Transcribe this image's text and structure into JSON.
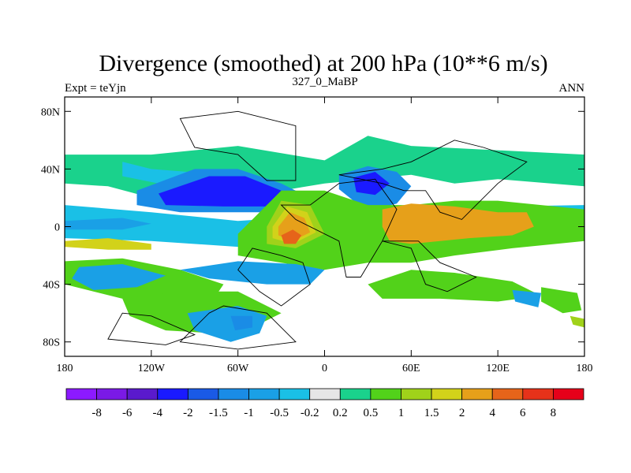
{
  "chart_data": {
    "type": "heatmap",
    "title": "Divergence (smoothed) at 200 hPa (10**6 m/s)",
    "subtitle_left": "Expt = teYjn",
    "subtitle_center": "327_0_MaBP",
    "subtitle_right": "ANN",
    "xlim": [
      -180,
      180
    ],
    "ylim": [
      -90,
      90
    ],
    "x_ticks": [
      {
        "value": -180,
        "label": "180"
      },
      {
        "value": -120,
        "label": "120W"
      },
      {
        "value": -60,
        "label": "60W"
      },
      {
        "value": 0,
        "label": "0"
      },
      {
        "value": 60,
        "label": "60E"
      },
      {
        "value": 120,
        "label": "120E"
      },
      {
        "value": 180,
        "label": "180"
      }
    ],
    "y_ticks": [
      {
        "value": 80,
        "label": "80N"
      },
      {
        "value": 40,
        "label": "40N"
      },
      {
        "value": 0,
        "label": "0"
      },
      {
        "value": -40,
        "label": "40S"
      },
      {
        "value": -80,
        "label": "80S"
      }
    ],
    "colorbar": {
      "labels": [
        "-8",
        "-6",
        "-4",
        "-2",
        "-1.5",
        "-1",
        "-0.5",
        "-0.2",
        "0.2",
        "0.5",
        "1",
        "1.5",
        "2",
        "4",
        "6",
        "8"
      ],
      "colors": [
        "#8c1aff",
        "#7a1ae6",
        "#5a1acd",
        "#1a1aff",
        "#1a5ae6",
        "#1a8ce6",
        "#1aa0e6",
        "#1ac0e6",
        "#e6e6e6",
        "#1ad28c",
        "#52d21a",
        "#a0d21a",
        "#d2d21a",
        "#e6a01a",
        "#e6641a",
        "#e6321a",
        "#e6001a"
      ]
    },
    "regions": [
      {
        "level": "0.2",
        "points": [
          [
            -180,
            50
          ],
          [
            -120,
            50
          ],
          [
            -60,
            56
          ],
          [
            0,
            46
          ],
          [
            30,
            63
          ],
          [
            60,
            56
          ],
          [
            120,
            53
          ],
          [
            180,
            50
          ],
          [
            180,
            28
          ],
          [
            120,
            33
          ],
          [
            90,
            30
          ],
          [
            60,
            36
          ],
          [
            30,
            33
          ],
          [
            0,
            30
          ],
          [
            -60,
            20
          ],
          [
            -120,
            20
          ],
          [
            -150,
            28
          ],
          [
            -180,
            30
          ]
        ]
      },
      {
        "level": "-0.2",
        "points": [
          [
            -140,
            45
          ],
          [
            -120,
            40
          ],
          [
            -95,
            38
          ],
          [
            -95,
            30
          ],
          [
            -115,
            30
          ],
          [
            -140,
            35
          ]
        ]
      },
      {
        "level": "-0.2",
        "points": [
          [
            -180,
            15
          ],
          [
            -120,
            10
          ],
          [
            -60,
            4
          ],
          [
            0,
            8
          ],
          [
            60,
            12
          ],
          [
            120,
            14
          ],
          [
            180,
            15
          ],
          [
            180,
            -8
          ],
          [
            120,
            -8
          ],
          [
            60,
            -12
          ],
          [
            0,
            -18
          ],
          [
            -60,
            -14
          ],
          [
            -120,
            -10
          ],
          [
            -180,
            -8
          ]
        ]
      },
      {
        "level": "-1",
        "points": [
          [
            -130,
            25
          ],
          [
            -90,
            40
          ],
          [
            -60,
            40
          ],
          [
            -30,
            30
          ],
          [
            -10,
            20
          ],
          [
            -30,
            10
          ],
          [
            -60,
            10
          ],
          [
            -100,
            10
          ],
          [
            -130,
            15
          ]
        ]
      },
      {
        "level": "-2",
        "points": [
          [
            -115,
            23
          ],
          [
            -80,
            35
          ],
          [
            -55,
            35
          ],
          [
            -30,
            25
          ],
          [
            -40,
            14
          ],
          [
            -70,
            14
          ],
          [
            -110,
            15
          ]
        ]
      },
      {
        "level": "-1",
        "points": [
          [
            10,
            36
          ],
          [
            30,
            42
          ],
          [
            50,
            38
          ],
          [
            60,
            28
          ],
          [
            50,
            16
          ],
          [
            35,
            12
          ],
          [
            20,
            18
          ],
          [
            10,
            26
          ]
        ]
      },
      {
        "level": "-2",
        "points": [
          [
            20,
            34
          ],
          [
            35,
            38
          ],
          [
            45,
            30
          ],
          [
            35,
            22
          ],
          [
            22,
            24
          ]
        ]
      },
      {
        "level": "-1",
        "points": [
          [
            95,
            10
          ],
          [
            120,
            12
          ],
          [
            150,
            10
          ],
          [
            175,
            5
          ],
          [
            170,
            -6
          ],
          [
            140,
            -6
          ],
          [
            110,
            -5
          ],
          [
            95,
            0
          ]
        ]
      },
      {
        "level": "-2",
        "points": [
          [
            115,
            6
          ],
          [
            140,
            7
          ],
          [
            165,
            4
          ],
          [
            160,
            -3
          ],
          [
            135,
            -4
          ],
          [
            115,
            -2
          ]
        ]
      },
      {
        "level": "-0.5",
        "points": [
          [
            -180,
            4
          ],
          [
            -140,
            6
          ],
          [
            -120,
            2
          ],
          [
            -140,
            -2
          ],
          [
            -180,
            -2
          ]
        ]
      },
      {
        "level": "0.5",
        "points": [
          [
            -60,
            -5
          ],
          [
            -30,
            25
          ],
          [
            0,
            25
          ],
          [
            30,
            15
          ],
          [
            60,
            15
          ],
          [
            90,
            18
          ],
          [
            120,
            18
          ],
          [
            150,
            15
          ],
          [
            180,
            12
          ],
          [
            180,
            -10
          ],
          [
            130,
            -15
          ],
          [
            90,
            -20
          ],
          [
            60,
            -25
          ],
          [
            30,
            -25
          ],
          [
            0,
            -30
          ],
          [
            -30,
            -25
          ],
          [
            -60,
            -20
          ]
        ]
      },
      {
        "level": "1",
        "points": [
          [
            -40,
            0
          ],
          [
            -30,
            18
          ],
          [
            -10,
            15
          ],
          [
            0,
            -5
          ],
          [
            -20,
            -15
          ],
          [
            -40,
            -12
          ]
        ]
      },
      {
        "level": "1.5",
        "points": [
          [
            -36,
            0
          ],
          [
            -26,
            14
          ],
          [
            -12,
            10
          ],
          [
            -6,
            -4
          ],
          [
            -22,
            -12
          ],
          [
            -36,
            -8
          ]
        ]
      },
      {
        "level": "2",
        "points": [
          [
            -32,
            0
          ],
          [
            -24,
            10
          ],
          [
            -14,
            6
          ],
          [
            -10,
            -4
          ],
          [
            -22,
            -10
          ],
          [
            -32,
            -6
          ]
        ]
      },
      {
        "level": "4",
        "points": [
          [
            -30,
            -6
          ],
          [
            -22,
            -2
          ],
          [
            -16,
            -6
          ],
          [
            -20,
            -12
          ],
          [
            -28,
            -12
          ]
        ]
      },
      {
        "level": "2",
        "points": [
          [
            40,
            12
          ],
          [
            60,
            16
          ],
          [
            90,
            14
          ],
          [
            120,
            10
          ],
          [
            140,
            10
          ],
          [
            145,
            0
          ],
          [
            130,
            -6
          ],
          [
            100,
            -8
          ],
          [
            80,
            -10
          ],
          [
            60,
            -12
          ],
          [
            45,
            -10
          ],
          [
            40,
            0
          ]
        ]
      },
      {
        "level": "1.5",
        "points": [
          [
            -180,
            -10
          ],
          [
            -150,
            -8
          ],
          [
            -120,
            -12
          ],
          [
            -120,
            -16
          ],
          [
            -150,
            -16
          ],
          [
            -180,
            -14
          ]
        ]
      },
      {
        "level": "0.5",
        "points": [
          [
            -180,
            -24
          ],
          [
            -140,
            -22
          ],
          [
            -100,
            -30
          ],
          [
            -70,
            -40
          ],
          [
            -80,
            -55
          ],
          [
            -140,
            -50
          ],
          [
            -180,
            -40
          ]
        ]
      },
      {
        "level": "-0.5",
        "points": [
          [
            -170,
            -28
          ],
          [
            -140,
            -26
          ],
          [
            -110,
            -34
          ],
          [
            -130,
            -42
          ],
          [
            -160,
            -44
          ],
          [
            -175,
            -36
          ]
        ]
      },
      {
        "level": "-0.5",
        "points": [
          [
            -100,
            -30
          ],
          [
            -60,
            -24
          ],
          [
            -20,
            -26
          ],
          [
            0,
            -30
          ],
          [
            -10,
            -40
          ],
          [
            -40,
            -40
          ],
          [
            -80,
            -36
          ]
        ]
      },
      {
        "level": "0.5",
        "points": [
          [
            30,
            -40
          ],
          [
            60,
            -30
          ],
          [
            90,
            -32
          ],
          [
            130,
            -38
          ],
          [
            150,
            -48
          ],
          [
            120,
            -52
          ],
          [
            80,
            -50
          ],
          [
            40,
            -50
          ]
        ]
      },
      {
        "level": "0.5",
        "points": [
          [
            -140,
            -50
          ],
          [
            -100,
            -45
          ],
          [
            -60,
            -45
          ],
          [
            -30,
            -60
          ],
          [
            -60,
            -75
          ],
          [
            -110,
            -72
          ],
          [
            -135,
            -62
          ]
        ]
      },
      {
        "level": "-0.5",
        "points": [
          [
            -95,
            -60
          ],
          [
            -60,
            -55
          ],
          [
            -40,
            -62
          ],
          [
            -45,
            -74
          ],
          [
            -65,
            -80
          ],
          [
            -90,
            -72
          ]
        ]
      },
      {
        "level": "-1",
        "points": [
          [
            -65,
            -62
          ],
          [
            -50,
            -62
          ],
          [
            -50,
            -70
          ],
          [
            -62,
            -72
          ]
        ]
      },
      {
        "level": "0.5",
        "points": [
          [
            150,
            -42
          ],
          [
            175,
            -46
          ],
          [
            178,
            -58
          ],
          [
            165,
            -60
          ],
          [
            150,
            -52
          ]
        ]
      },
      {
        "level": "-0.5",
        "points": [
          [
            130,
            -44
          ],
          [
            150,
            -46
          ],
          [
            148,
            -56
          ],
          [
            132,
            -52
          ]
        ]
      },
      {
        "level": "1",
        "points": [
          [
            170,
            -62
          ],
          [
            180,
            -64
          ],
          [
            180,
            -70
          ],
          [
            172,
            -68
          ]
        ]
      }
    ],
    "land_outlines": [
      [
        [
          -20,
          32
        ],
        [
          -40,
          32
        ],
        [
          -60,
          50
        ],
        [
          -90,
          55
        ],
        [
          -100,
          75
        ],
        [
          -60,
          80
        ],
        [
          -20,
          70
        ]
      ],
      [
        [
          -30,
          15
        ],
        [
          -10,
          15
        ],
        [
          10,
          30
        ],
        [
          35,
          33
        ],
        [
          50,
          12
        ],
        [
          40,
          -10
        ],
        [
          25,
          -35
        ],
        [
          15,
          -35
        ],
        [
          10,
          -10
        ],
        [
          -20,
          5
        ]
      ],
      [
        [
          10,
          36
        ],
        [
          40,
          40
        ],
        [
          60,
          45
        ],
        [
          90,
          60
        ],
        [
          110,
          55
        ],
        [
          140,
          45
        ],
        [
          120,
          30
        ],
        [
          105,
          15
        ],
        [
          95,
          5
        ],
        [
          80,
          10
        ],
        [
          70,
          25
        ],
        [
          55,
          25
        ],
        [
          40,
          30
        ]
      ],
      [
        [
          -30,
          -20
        ],
        [
          -15,
          -25
        ],
        [
          -10,
          -40
        ],
        [
          -30,
          -55
        ],
        [
          -45,
          -45
        ],
        [
          -60,
          -30
        ],
        [
          -50,
          -15
        ]
      ],
      [
        [
          40,
          -10
        ],
        [
          60,
          -15
        ],
        [
          70,
          -40
        ],
        [
          85,
          -45
        ],
        [
          105,
          -35
        ],
        [
          80,
          -25
        ],
        [
          65,
          -10
        ]
      ],
      [
        [
          -80,
          -60
        ],
        [
          -70,
          -55
        ],
        [
          -40,
          -60
        ],
        [
          -20,
          -80
        ],
        [
          -60,
          -85
        ],
        [
          -100,
          -80
        ]
      ],
      [
        [
          -140,
          -60
        ],
        [
          -120,
          -62
        ],
        [
          -90,
          -75
        ],
        [
          -110,
          -82
        ],
        [
          -150,
          -78
        ]
      ]
    ]
  }
}
